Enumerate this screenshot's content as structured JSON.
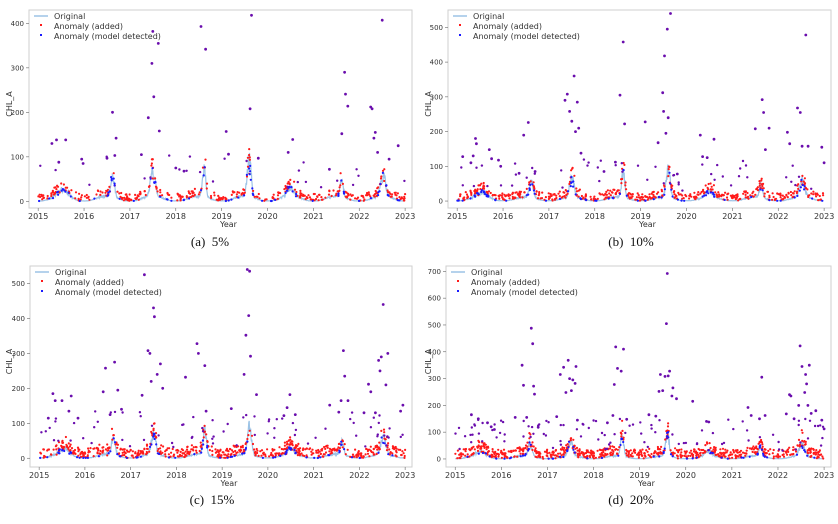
{
  "figure": {
    "legend_labels": {
      "original": "Original",
      "added": "Anomaly (added)",
      "detected": "Anomaly (model detected)"
    },
    "colors": {
      "original": "#5b9bd5",
      "original_light": "#9cc3e6",
      "added": "#ff1a1a",
      "detected": "#1a1aff",
      "overlap": "#6a0dad"
    }
  },
  "chart_data": [
    {
      "id": "a",
      "type": "scatter",
      "caption": "(a)  5%",
      "title": "",
      "xlabel": "Year",
      "ylabel": "CHL_A",
      "x_ticks": [
        "2015",
        "2016",
        "2017",
        "2018",
        "2019",
        "2020",
        "2021",
        "2022",
        "2023"
      ],
      "y_ticks": [
        0,
        100,
        200,
        300,
        400
      ],
      "xlim": [
        2014.8,
        2023.15
      ],
      "ylim": [
        -15,
        430
      ],
      "legend": "top-left",
      "anomaly_rate": "5%",
      "high_anomalies": [
        [
          2015.3,
          130
        ],
        [
          2015.4,
          138
        ],
        [
          2015.45,
          88
        ],
        [
          2015.6,
          138
        ],
        [
          2015.95,
          95
        ],
        [
          2015.98,
          85
        ],
        [
          2016.5,
          97
        ],
        [
          2016.62,
          200
        ],
        [
          2016.67,
          103
        ],
        [
          2016.7,
          142
        ],
        [
          2017.25,
          105
        ],
        [
          2017.4,
          188
        ],
        [
          2017.48,
          310
        ],
        [
          2017.5,
          382
        ],
        [
          2017.52,
          235
        ],
        [
          2017.62,
          355
        ],
        [
          2017.64,
          158
        ],
        [
          2018.0,
          75
        ],
        [
          2018.18,
          68
        ],
        [
          2018.55,
          393
        ],
        [
          2018.65,
          342
        ],
        [
          2019.1,
          157
        ],
        [
          2019.15,
          106
        ],
        [
          2019.62,
          208
        ],
        [
          2019.65,
          418
        ],
        [
          2019.8,
          97
        ],
        [
          2020.45,
          110
        ],
        [
          2020.55,
          139
        ],
        [
          2021.35,
          72
        ],
        [
          2021.62,
          152
        ],
        [
          2021.68,
          290
        ],
        [
          2021.7,
          241
        ],
        [
          2021.75,
          214
        ],
        [
          2022.25,
          212
        ],
        [
          2022.28,
          208
        ],
        [
          2022.32,
          142
        ],
        [
          2022.35,
          155
        ],
        [
          2022.4,
          110
        ],
        [
          2022.5,
          407
        ],
        [
          2022.65,
          95
        ],
        [
          2022.85,
          125
        ]
      ]
    },
    {
      "id": "b",
      "type": "scatter",
      "caption": "(b)  10%",
      "title": "",
      "xlabel": "Year",
      "ylabel": "CHL_A",
      "x_ticks": [
        "2015",
        "2016",
        "2017",
        "2018",
        "2019",
        "2020",
        "2021",
        "2022",
        "2023"
      ],
      "y_ticks": [
        0,
        100,
        200,
        300,
        400,
        500
      ],
      "xlim": [
        2014.8,
        2023.15
      ],
      "ylim": [
        -20,
        550
      ],
      "legend": "top-left",
      "anomaly_rate": "10%",
      "high_anomalies": [
        [
          2015.12,
          128
        ],
        [
          2015.3,
          110
        ],
        [
          2015.35,
          130
        ],
        [
          2015.4,
          180
        ],
        [
          2015.42,
          165
        ],
        [
          2015.7,
          148
        ],
        [
          2015.75,
          122
        ],
        [
          2015.9,
          118
        ],
        [
          2015.95,
          100
        ],
        [
          2016.35,
          80
        ],
        [
          2016.45,
          190
        ],
        [
          2016.55,
          226
        ],
        [
          2016.7,
          85
        ],
        [
          2017.35,
          290
        ],
        [
          2017.4,
          308
        ],
        [
          2017.45,
          258
        ],
        [
          2017.5,
          230
        ],
        [
          2017.55,
          360
        ],
        [
          2017.58,
          200
        ],
        [
          2017.62,
          285
        ],
        [
          2017.65,
          210
        ],
        [
          2017.7,
          138
        ],
        [
          2018.2,
          85
        ],
        [
          2018.45,
          112
        ],
        [
          2018.55,
          305
        ],
        [
          2018.62,
          458
        ],
        [
          2018.65,
          222
        ],
        [
          2019.1,
          228
        ],
        [
          2019.38,
          168
        ],
        [
          2019.48,
          312
        ],
        [
          2019.5,
          258
        ],
        [
          2019.52,
          418
        ],
        [
          2019.55,
          195
        ],
        [
          2019.58,
          495
        ],
        [
          2019.6,
          240
        ],
        [
          2019.65,
          540
        ],
        [
          2019.8,
          78
        ],
        [
          2020.3,
          190
        ],
        [
          2020.35,
          128
        ],
        [
          2020.45,
          125
        ],
        [
          2020.6,
          178
        ],
        [
          2021.5,
          208
        ],
        [
          2021.65,
          292
        ],
        [
          2021.68,
          255
        ],
        [
          2021.72,
          148
        ],
        [
          2021.8,
          210
        ],
        [
          2022.2,
          198
        ],
        [
          2022.25,
          165
        ],
        [
          2022.42,
          268
        ],
        [
          2022.48,
          255
        ],
        [
          2022.52,
          158
        ],
        [
          2022.6,
          478
        ],
        [
          2022.65,
          158
        ],
        [
          2022.95,
          155
        ],
        [
          2023.0,
          110
        ]
      ]
    },
    {
      "id": "c",
      "type": "scatter",
      "caption": "(c)  15%",
      "title": "",
      "xlabel": "Year",
      "ylabel": "CHL_A",
      "x_ticks": [
        "2015",
        "2016",
        "2017",
        "2018",
        "2019",
        "2020",
        "2021",
        "2022",
        "2023"
      ],
      "y_ticks": [
        0,
        100,
        200,
        300,
        400,
        500
      ],
      "xlim": [
        2014.8,
        2023.15
      ],
      "ylim": [
        -25,
        550
      ],
      "legend": "top-left",
      "anomaly_rate": "15%",
      "high_anomalies": [
        [
          2015.2,
          115
        ],
        [
          2015.3,
          185
        ],
        [
          2015.35,
          165
        ],
        [
          2015.5,
          165
        ],
        [
          2015.65,
          135
        ],
        [
          2015.7,
          178
        ],
        [
          2015.85,
          115
        ],
        [
          2016.4,
          190
        ],
        [
          2016.45,
          258
        ],
        [
          2016.55,
          125
        ],
        [
          2016.65,
          275
        ],
        [
          2016.72,
          195
        ],
        [
          2016.8,
          140
        ],
        [
          2017.25,
          180
        ],
        [
          2017.3,
          525
        ],
        [
          2017.38,
          308
        ],
        [
          2017.42,
          300
        ],
        [
          2017.45,
          220
        ],
        [
          2017.5,
          430
        ],
        [
          2017.52,
          405
        ],
        [
          2017.58,
          240
        ],
        [
          2017.65,
          270
        ],
        [
          2017.7,
          200
        ],
        [
          2018.2,
          232
        ],
        [
          2018.45,
          328
        ],
        [
          2018.48,
          300
        ],
        [
          2018.62,
          265
        ],
        [
          2018.65,
          135
        ],
        [
          2019.2,
          142
        ],
        [
          2019.48,
          240
        ],
        [
          2019.52,
          352
        ],
        [
          2019.55,
          540
        ],
        [
          2019.58,
          408
        ],
        [
          2019.6,
          535
        ],
        [
          2019.62,
          292
        ],
        [
          2019.75,
          182
        ],
        [
          2020.35,
          122
        ],
        [
          2020.42,
          145
        ],
        [
          2020.48,
          182
        ],
        [
          2020.6,
          125
        ],
        [
          2021.35,
          152
        ],
        [
          2021.55,
          132
        ],
        [
          2021.6,
          165
        ],
        [
          2021.65,
          308
        ],
        [
          2021.68,
          235
        ],
        [
          2021.75,
          165
        ],
        [
          2022.1,
          130
        ],
        [
          2022.2,
          212
        ],
        [
          2022.25,
          190
        ],
        [
          2022.35,
          130
        ],
        [
          2022.42,
          280
        ],
        [
          2022.45,
          250
        ],
        [
          2022.48,
          290
        ],
        [
          2022.52,
          440
        ],
        [
          2022.58,
          210
        ],
        [
          2022.62,
          300
        ],
        [
          2022.9,
          135
        ],
        [
          2022.95,
          152
        ]
      ]
    },
    {
      "id": "d",
      "type": "scatter",
      "caption": "(d)  20%",
      "title": "",
      "xlabel": "Year",
      "ylabel": "CHL_A",
      "x_ticks": [
        "2015",
        "2016",
        "2017",
        "2018",
        "2019",
        "2020",
        "2021",
        "2022",
        "2023"
      ],
      "y_ticks": [
        0,
        100,
        200,
        300,
        400,
        500,
        600,
        700
      ],
      "xlim": [
        2014.8,
        2023.15
      ],
      "ylim": [
        -30,
        720
      ],
      "legend": "top-left",
      "anomaly_rate": "20%",
      "high_anomalies": [
        [
          2015.35,
          165
        ],
        [
          2015.5,
          150
        ],
        [
          2015.7,
          135
        ],
        [
          2015.78,
          120
        ],
        [
          2015.85,
          110
        ],
        [
          2016.3,
          155
        ],
        [
          2016.45,
          350
        ],
        [
          2016.48,
          275
        ],
        [
          2016.55,
          155
        ],
        [
          2016.65,
          488
        ],
        [
          2016.68,
          430
        ],
        [
          2016.7,
          272
        ],
        [
          2016.72,
          242
        ],
        [
          2016.8,
          118
        ],
        [
          2017.2,
          158
        ],
        [
          2017.28,
          315
        ],
        [
          2017.35,
          342
        ],
        [
          2017.4,
          248
        ],
        [
          2017.45,
          368
        ],
        [
          2017.48,
          300
        ],
        [
          2017.52,
          255
        ],
        [
          2017.55,
          295
        ],
        [
          2017.6,
          282
        ],
        [
          2017.62,
          345
        ],
        [
          2017.65,
          145
        ],
        [
          2018.3,
          135
        ],
        [
          2018.42,
          162
        ],
        [
          2018.45,
          278
        ],
        [
          2018.48,
          418
        ],
        [
          2018.52,
          338
        ],
        [
          2018.6,
          328
        ],
        [
          2018.65,
          410
        ],
        [
          2018.72,
          148
        ],
        [
          2019.2,
          165
        ],
        [
          2019.35,
          160
        ],
        [
          2019.42,
          252
        ],
        [
          2019.45,
          315
        ],
        [
          2019.5,
          255
        ],
        [
          2019.55,
          308
        ],
        [
          2019.58,
          505
        ],
        [
          2019.6,
          692
        ],
        [
          2019.62,
          310
        ],
        [
          2019.65,
          328
        ],
        [
          2019.7,
          235
        ],
        [
          2019.72,
          265
        ],
        [
          2019.8,
          225
        ],
        [
          2020.15,
          215
        ],
        [
          2020.45,
          140
        ],
        [
          2020.5,
          138
        ],
        [
          2021.35,
          192
        ],
        [
          2021.42,
          162
        ],
        [
          2021.6,
          150
        ],
        [
          2021.65,
          305
        ],
        [
          2021.72,
          162
        ],
        [
          2022.18,
          168
        ],
        [
          2022.25,
          240
        ],
        [
          2022.28,
          235
        ],
        [
          2022.35,
          150
        ],
        [
          2022.45,
          200
        ],
        [
          2022.48,
          422
        ],
        [
          2022.52,
          345
        ],
        [
          2022.58,
          248
        ],
        [
          2022.6,
          315
        ],
        [
          2022.62,
          280
        ],
        [
          2022.65,
          200
        ],
        [
          2022.68,
          350
        ],
        [
          2022.72,
          170
        ],
        [
          2022.82,
          180
        ],
        [
          2022.95,
          145
        ],
        [
          2023.0,
          112
        ]
      ]
    }
  ]
}
